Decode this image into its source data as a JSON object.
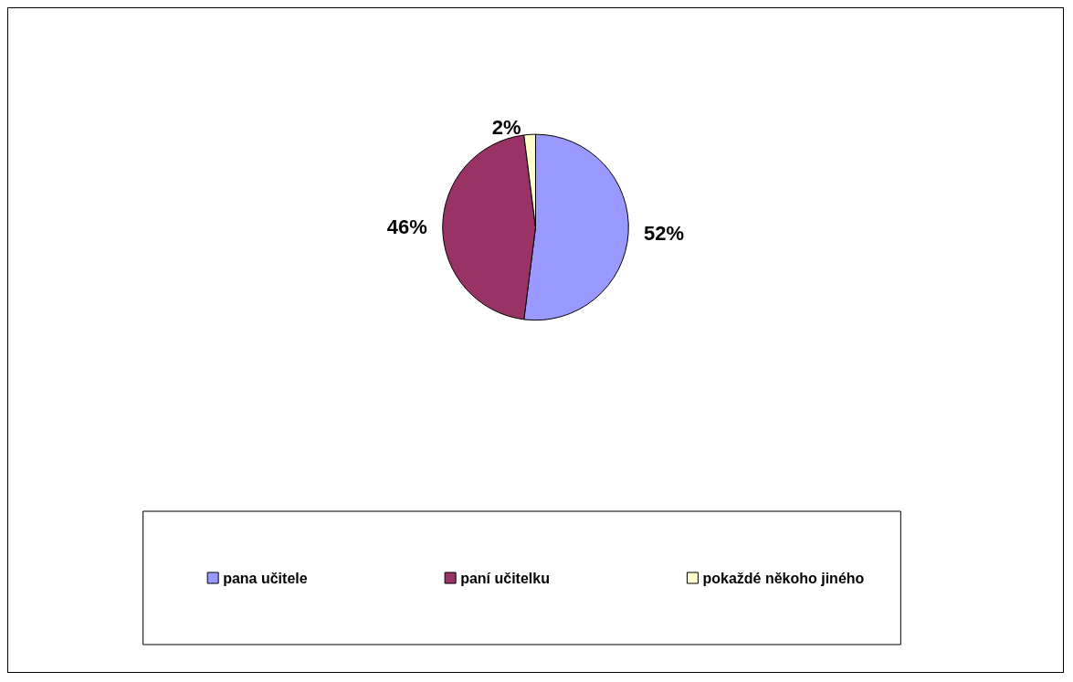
{
  "chart_data": {
    "type": "pie",
    "categories": [
      "pana učitele",
      "paní učitelku",
      "pokaždé někoho jiného"
    ],
    "values": [
      52,
      46,
      2
    ],
    "colors": [
      "#9999ff",
      "#993366",
      "#ffffcc"
    ],
    "value_labels": [
      "52%",
      "46%",
      "2%"
    ],
    "legend": "bottom"
  }
}
